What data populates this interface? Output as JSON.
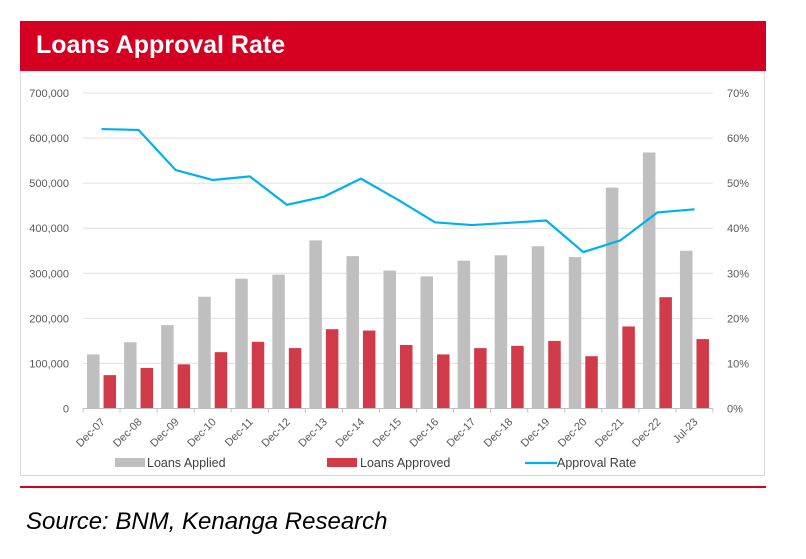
{
  "header": {
    "title": "Loans Approval Rate"
  },
  "footer": {
    "source": "Source: BNM, Kenanga Research"
  },
  "colors": {
    "brand_red": "#d50021",
    "applied": "#bfbfbf",
    "approved": "#d13a48",
    "rate": "#00b0f0",
    "grid": "#e0e0e0"
  },
  "chart_data": {
    "type": "bar",
    "title": "Loans Approval Rate",
    "categories": [
      "Dec-07",
      "Dec-08",
      "Dec-09",
      "Dec-10",
      "Dec-11",
      "Dec-12",
      "Dec-13",
      "Dec-14",
      "Dec-15",
      "Dec-16",
      "Dec-17",
      "Dec-18",
      "Dec-19",
      "Dec-20",
      "Dec-21",
      "Dec-22",
      "Jul-23"
    ],
    "series": [
      {
        "name": "Loans Applied",
        "type": "bar",
        "axis": "left",
        "values": [
          120000,
          147000,
          185000,
          248000,
          288000,
          297000,
          373000,
          338000,
          306000,
          293000,
          328000,
          340000,
          360000,
          336000,
          490000,
          568000,
          350000
        ]
      },
      {
        "name": "Loans Approved",
        "type": "bar",
        "axis": "left",
        "values": [
          74000,
          90000,
          98000,
          125000,
          148000,
          134000,
          176000,
          173000,
          141000,
          120000,
          134000,
          139000,
          150000,
          116000,
          182000,
          247000,
          154000
        ]
      },
      {
        "name": "Approval Rate",
        "type": "line",
        "axis": "right",
        "values": [
          62.0,
          61.8,
          52.9,
          50.7,
          51.5,
          45.2,
          47.0,
          51.0,
          46.3,
          41.3,
          40.7,
          41.2,
          41.7,
          34.7,
          37.3,
          43.5,
          44.2
        ]
      }
    ],
    "xlabel": "",
    "ylabel": "",
    "y_left": {
      "lim": [
        0,
        700000
      ],
      "ticks": [
        "0",
        "100,000",
        "200,000",
        "300,000",
        "400,000",
        "500,000",
        "600,000",
        "700,000"
      ]
    },
    "y_right": {
      "lim": [
        0,
        70
      ],
      "ticks": [
        "0%",
        "10%",
        "20%",
        "30%",
        "40%",
        "50%",
        "60%",
        "70%"
      ]
    },
    "grid": true,
    "legend": {
      "placement": "bottom",
      "entries": [
        "Loans Applied",
        "Loans Approved",
        "Approval Rate"
      ]
    }
  }
}
